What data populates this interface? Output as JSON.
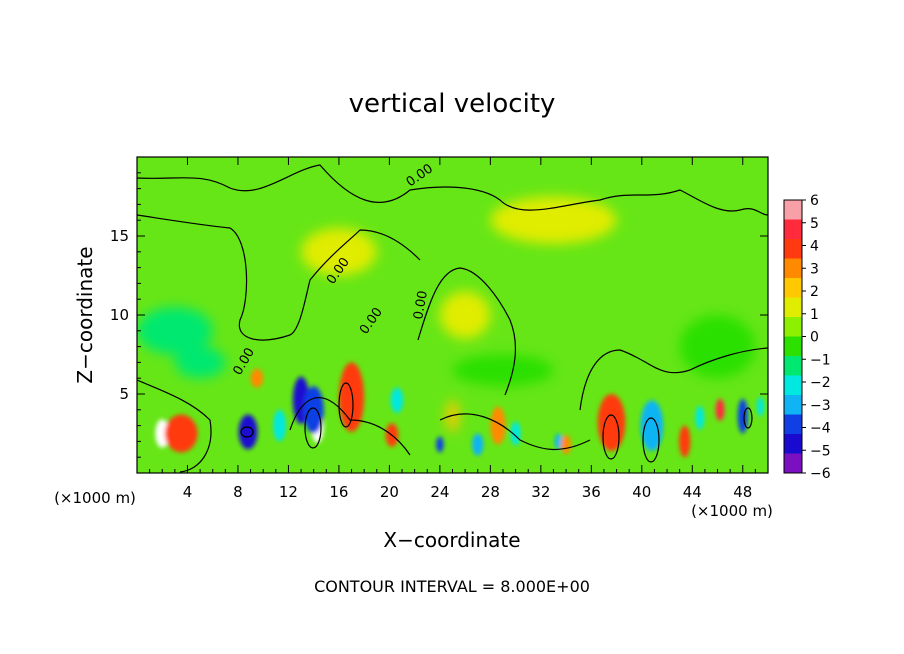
{
  "chart_data": {
    "type": "heatmap",
    "title": "vertical velocity",
    "xlabel": "X−coordinate",
    "ylabel": "Z−coordinate",
    "x_unit": "(×1000 m)",
    "y_unit": "(×1000 m)",
    "x_range": [
      0,
      50
    ],
    "y_range": [
      0,
      20
    ],
    "x_ticks": [
      4,
      8,
      12,
      16,
      20,
      24,
      28,
      32,
      36,
      40,
      44,
      48
    ],
    "y_ticks": [
      5,
      10,
      15
    ],
    "footer": "CONTOUR INTERVAL = 8.000E+00",
    "contour_interval": 8.0,
    "contour_labels": [
      "0.00",
      "0.00",
      "0.00",
      "0.00",
      "0.00"
    ],
    "colorbar": {
      "min": -6,
      "max": 6,
      "ticks": [
        "6",
        "5",
        "4",
        "3",
        "2",
        "1",
        "0",
        "−1",
        "−2",
        "−3",
        "−4",
        "−5",
        "−6"
      ],
      "colors": [
        "#f8a0a8",
        "#ff2a3c",
        "#ff3a10",
        "#ff8a00",
        "#ffc800",
        "#e0ec00",
        "#8cf000",
        "#2ce000",
        "#00e870",
        "#00e8e0",
        "#10b4f4",
        "#1040e4",
        "#1a0ad0",
        "#7a10c0"
      ]
    },
    "cells": [
      {
        "x": 2,
        "z": 2.5,
        "w": 1.1,
        "hz": 1.8,
        "v": 7
      },
      {
        "x": 3.5,
        "z": 2.5,
        "w": 2.6,
        "hz": 2.4,
        "v": 4
      },
      {
        "x": 8.8,
        "z": 2.6,
        "w": 1.5,
        "hz": 2.2,
        "v": -6
      },
      {
        "x": 9.5,
        "z": 6.0,
        "w": 1.0,
        "hz": 1.2,
        "v": 3
      },
      {
        "x": 11.3,
        "z": 3.0,
        "w": 1.0,
        "hz": 2.0,
        "v": -3
      },
      {
        "x": 13.0,
        "z": 4.6,
        "w": 1.3,
        "hz": 3.0,
        "v": -6
      },
      {
        "x": 14.3,
        "z": 3.0,
        "w": 1.0,
        "hz": 2.2,
        "v": 7
      },
      {
        "x": 14.0,
        "z": 4.0,
        "w": 1.6,
        "hz": 3.0,
        "v": -5
      },
      {
        "x": 17.0,
        "z": 4.6,
        "w": 1.2,
        "hz": 3.0,
        "v": 7
      },
      {
        "x": 17.0,
        "z": 4.8,
        "w": 2.0,
        "hz": 4.4,
        "v": 4
      },
      {
        "x": 20.2,
        "z": 2.4,
        "w": 1.0,
        "hz": 1.5,
        "v": 4
      },
      {
        "x": 20.6,
        "z": 4.6,
        "w": 1.0,
        "hz": 1.6,
        "v": -3
      },
      {
        "x": 24.0,
        "z": 1.8,
        "w": 0.6,
        "hz": 1.0,
        "v": -5
      },
      {
        "x": 25.0,
        "z": 3.6,
        "w": 1.0,
        "hz": 2.0,
        "v": 2
      },
      {
        "x": 27.0,
        "z": 1.8,
        "w": 0.9,
        "hz": 1.4,
        "v": -4
      },
      {
        "x": 28.6,
        "z": 3.0,
        "w": 1.2,
        "hz": 2.4,
        "v": 3
      },
      {
        "x": 30.0,
        "z": 2.5,
        "w": 0.8,
        "hz": 1.5,
        "v": -3
      },
      {
        "x": 33.4,
        "z": 2.0,
        "w": 0.6,
        "hz": 1.0,
        "v": -4
      },
      {
        "x": 34.0,
        "z": 1.8,
        "w": 0.8,
        "hz": 1.2,
        "v": 3
      },
      {
        "x": 37.6,
        "z": 2.6,
        "w": 1.2,
        "hz": 2.3,
        "v": 7
      },
      {
        "x": 37.6,
        "z": 3.2,
        "w": 2.2,
        "hz": 3.6,
        "v": 4
      },
      {
        "x": 40.6,
        "z": 3.0,
        "w": 1.0,
        "hz": 2.6,
        "v": -6
      },
      {
        "x": 40.8,
        "z": 3.0,
        "w": 1.8,
        "hz": 3.2,
        "v": -4
      },
      {
        "x": 43.4,
        "z": 2.0,
        "w": 0.9,
        "hz": 2.0,
        "v": 4
      },
      {
        "x": 44.6,
        "z": 3.5,
        "w": 0.7,
        "hz": 1.5,
        "v": -3
      },
      {
        "x": 46.2,
        "z": 4.0,
        "w": 0.7,
        "hz": 1.4,
        "v": 5
      },
      {
        "x": 48.0,
        "z": 3.6,
        "w": 0.8,
        "hz": 2.2,
        "v": -5
      },
      {
        "x": 49.4,
        "z": 4.2,
        "w": 0.6,
        "hz": 1.2,
        "v": -3
      },
      {
        "x": 16.0,
        "z": 14.0,
        "w": 6.0,
        "hz": 3.0,
        "v": 0.6
      },
      {
        "x": 33.0,
        "z": 16.0,
        "w": 10.0,
        "hz": 3.0,
        "v": 0.6
      },
      {
        "x": 26.0,
        "z": 10.0,
        "w": 4.0,
        "hz": 3.0,
        "v": 1
      },
      {
        "x": 3.0,
        "z": 9.0,
        "w": 6.0,
        "hz": 3.0,
        "v": -1.8
      },
      {
        "x": 5.0,
        "z": 7.0,
        "w": 4.0,
        "hz": 2.0,
        "v": -2.3
      },
      {
        "x": 46.0,
        "z": 8.0,
        "w": 6.0,
        "hz": 4.0,
        "v": -0.8
      },
      {
        "x": 29.0,
        "z": 6.5,
        "w": 8.0,
        "hz": 2.0,
        "v": -0.7
      }
    ]
  }
}
